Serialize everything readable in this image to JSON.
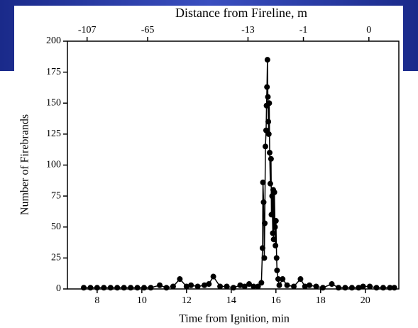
{
  "chart_data": {
    "type": "line",
    "title": "Distance from Fireline, m",
    "x_label": "Time from Ignition, min",
    "y_label": "Number of Firebrands",
    "xlim": [
      6.67,
      21.5
    ],
    "ylim": [
      0,
      200
    ],
    "xticks": [
      8,
      10,
      12,
      14,
      16,
      18,
      20
    ],
    "yticks": [
      0,
      25,
      50,
      75,
      100,
      125,
      150,
      175,
      200
    ],
    "x2ticks": [
      {
        "value": 7.55,
        "label": "-107"
      },
      {
        "value": 10.26,
        "label": "-65"
      },
      {
        "value": 14.75,
        "label": "-13"
      },
      {
        "value": 17.23,
        "label": "-1"
      },
      {
        "value": 20.16,
        "label": "0"
      }
    ],
    "x": [
      7.4,
      7.7,
      8.0,
      8.3,
      8.6,
      8.9,
      9.2,
      9.5,
      9.8,
      10.1,
      10.4,
      10.8,
      11.1,
      11.4,
      11.7,
      12.0,
      12.2,
      12.5,
      12.8,
      13.0,
      13.2,
      13.5,
      13.8,
      14.1,
      14.4,
      14.6,
      14.8,
      15.0,
      15.2,
      15.35,
      15.4,
      15.42,
      15.45,
      15.48,
      15.5,
      15.53,
      15.56,
      15.58,
      15.6,
      15.62,
      15.64,
      15.66,
      15.68,
      15.7,
      15.72,
      15.75,
      15.78,
      15.8,
      15.83,
      15.86,
      15.88,
      15.9,
      15.93,
      15.96,
      15.98,
      16.0,
      16.03,
      16.05,
      16.1,
      16.15,
      16.3,
      16.5,
      16.8,
      17.1,
      17.3,
      17.5,
      17.8,
      18.1,
      18.5,
      18.8,
      19.1,
      19.4,
      19.7,
      19.9,
      20.2,
      20.5,
      20.8,
      21.1,
      21.3
    ],
    "series": [
      {
        "color": "#000000",
        "values": [
          1,
          1,
          1,
          1,
          1,
          1,
          1,
          1,
          1,
          1,
          1,
          3,
          1,
          2,
          8,
          2,
          3,
          2,
          3,
          4,
          10,
          2,
          2,
          1,
          3,
          2,
          4,
          2,
          2,
          5,
          33,
          86,
          70,
          25,
          53,
          115,
          128,
          148,
          163,
          185,
          155,
          135,
          125,
          150,
          110,
          85,
          105,
          60,
          75,
          45,
          80,
          40,
          78,
          50,
          35,
          55,
          25,
          15,
          8,
          3,
          8,
          3,
          2,
          8,
          2,
          3,
          2,
          1,
          4,
          1,
          1,
          1,
          1,
          2,
          2,
          1,
          1,
          1,
          1
        ]
      }
    ]
  }
}
